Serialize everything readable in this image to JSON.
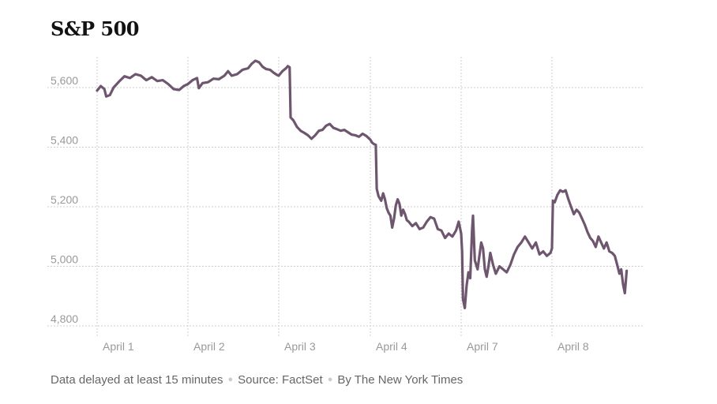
{
  "chart_data": {
    "type": "line",
    "title": "S&P 500",
    "xlabel": "",
    "ylabel": "",
    "ylim": [
      4780,
      5720
    ],
    "yticks": [
      4800,
      5000,
      5200,
      5400,
      5600
    ],
    "ytick_labels": [
      "4,800",
      "5,000",
      "5,200",
      "5,400",
      "5,600"
    ],
    "x_categories": [
      "April 1",
      "April 2",
      "April 3",
      "April 4",
      "April 7",
      "April 8"
    ],
    "grid": true,
    "line_color": "#6e566f",
    "series": [
      {
        "name": "",
        "values": [
          [
            0.0,
            5590
          ],
          [
            0.04,
            5605
          ],
          [
            0.08,
            5595
          ],
          [
            0.1,
            5570
          ],
          [
            0.14,
            5575
          ],
          [
            0.18,
            5600
          ],
          [
            0.24,
            5620
          ],
          [
            0.3,
            5638
          ],
          [
            0.36,
            5632
          ],
          [
            0.42,
            5645
          ],
          [
            0.48,
            5640
          ],
          [
            0.54,
            5625
          ],
          [
            0.6,
            5635
          ],
          [
            0.66,
            5622
          ],
          [
            0.72,
            5625
          ],
          [
            0.78,
            5612
          ],
          [
            0.84,
            5595
          ],
          [
            0.9,
            5592
          ],
          [
            0.95,
            5605
          ],
          [
            1.0,
            5612
          ],
          [
            1.05,
            5625
          ],
          [
            1.1,
            5632
          ],
          [
            1.12,
            5598
          ],
          [
            1.16,
            5615
          ],
          [
            1.22,
            5618
          ],
          [
            1.28,
            5630
          ],
          [
            1.34,
            5628
          ],
          [
            1.4,
            5640
          ],
          [
            1.44,
            5655
          ],
          [
            1.48,
            5640
          ],
          [
            1.54,
            5645
          ],
          [
            1.6,
            5660
          ],
          [
            1.66,
            5665
          ],
          [
            1.7,
            5680
          ],
          [
            1.74,
            5690
          ],
          [
            1.78,
            5685
          ],
          [
            1.82,
            5670
          ],
          [
            1.86,
            5662
          ],
          [
            1.9,
            5660
          ],
          [
            1.94,
            5650
          ],
          [
            1.98,
            5642
          ],
          [
            2.0,
            5640
          ],
          [
            2.04,
            5655
          ],
          [
            2.08,
            5665
          ],
          [
            2.1,
            5672
          ],
          [
            2.12,
            5668
          ],
          [
            2.13,
            5500
          ],
          [
            2.16,
            5490
          ],
          [
            2.2,
            5468
          ],
          [
            2.24,
            5455
          ],
          [
            2.28,
            5448
          ],
          [
            2.32,
            5440
          ],
          [
            2.36,
            5428
          ],
          [
            2.4,
            5440
          ],
          [
            2.44,
            5455
          ],
          [
            2.48,
            5458
          ],
          [
            2.52,
            5472
          ],
          [
            2.56,
            5478
          ],
          [
            2.6,
            5465
          ],
          [
            2.64,
            5460
          ],
          [
            2.68,
            5455
          ],
          [
            2.72,
            5458
          ],
          [
            2.76,
            5450
          ],
          [
            2.8,
            5442
          ],
          [
            2.84,
            5440
          ],
          [
            2.88,
            5435
          ],
          [
            2.92,
            5445
          ],
          [
            2.96,
            5438
          ],
          [
            3.0,
            5425
          ],
          [
            3.02,
            5415
          ],
          [
            3.04,
            5410
          ],
          [
            3.06,
            5408
          ],
          [
            3.07,
            5260
          ],
          [
            3.09,
            5235
          ],
          [
            3.12,
            5220
          ],
          [
            3.14,
            5245
          ],
          [
            3.16,
            5225
          ],
          [
            3.18,
            5195
          ],
          [
            3.2,
            5180
          ],
          [
            3.22,
            5170
          ],
          [
            3.24,
            5130
          ],
          [
            3.26,
            5160
          ],
          [
            3.28,
            5205
          ],
          [
            3.3,
            5225
          ],
          [
            3.32,
            5210
          ],
          [
            3.34,
            5170
          ],
          [
            3.36,
            5190
          ],
          [
            3.38,
            5175
          ],
          [
            3.4,
            5155
          ],
          [
            3.42,
            5150
          ],
          [
            3.46,
            5135
          ],
          [
            3.5,
            5145
          ],
          [
            3.54,
            5125
          ],
          [
            3.58,
            5130
          ],
          [
            3.62,
            5150
          ],
          [
            3.66,
            5165
          ],
          [
            3.7,
            5160
          ],
          [
            3.74,
            5125
          ],
          [
            3.78,
            5120
          ],
          [
            3.82,
            5095
          ],
          [
            3.86,
            5110
          ],
          [
            3.9,
            5100
          ],
          [
            3.94,
            5120
          ],
          [
            3.97,
            5150
          ],
          [
            4.0,
            5110
          ],
          [
            4.01,
            5050
          ],
          [
            4.02,
            4890
          ],
          [
            4.04,
            4860
          ],
          [
            4.06,
            4935
          ],
          [
            4.08,
            4980
          ],
          [
            4.1,
            4960
          ],
          [
            4.12,
            5120
          ],
          [
            4.13,
            5170
          ],
          [
            4.15,
            5020
          ],
          [
            4.18,
            4990
          ],
          [
            4.22,
            5080
          ],
          [
            4.24,
            5060
          ],
          [
            4.26,
            4990
          ],
          [
            4.28,
            4965
          ],
          [
            4.3,
            5000
          ],
          [
            4.32,
            5045
          ],
          [
            4.35,
            5005
          ],
          [
            4.38,
            4975
          ],
          [
            4.42,
            5000
          ],
          [
            4.46,
            4990
          ],
          [
            4.5,
            4980
          ],
          [
            4.54,
            5005
          ],
          [
            4.58,
            5040
          ],
          [
            4.62,
            5065
          ],
          [
            4.66,
            5080
          ],
          [
            4.7,
            5100
          ],
          [
            4.74,
            5080
          ],
          [
            4.78,
            5060
          ],
          [
            4.82,
            5080
          ],
          [
            4.86,
            5040
          ],
          [
            4.9,
            5050
          ],
          [
            4.94,
            5035
          ],
          [
            4.98,
            5045
          ],
          [
            5.0,
            5060
          ],
          [
            5.01,
            5220
          ],
          [
            5.03,
            5215
          ],
          [
            5.06,
            5240
          ],
          [
            5.09,
            5255
          ],
          [
            5.12,
            5250
          ],
          [
            5.15,
            5255
          ],
          [
            5.18,
            5225
          ],
          [
            5.21,
            5200
          ],
          [
            5.24,
            5175
          ],
          [
            5.27,
            5190
          ],
          [
            5.3,
            5180
          ],
          [
            5.33,
            5160
          ],
          [
            5.36,
            5140
          ],
          [
            5.39,
            5115
          ],
          [
            5.42,
            5095
          ],
          [
            5.45,
            5085
          ],
          [
            5.48,
            5065
          ],
          [
            5.51,
            5100
          ],
          [
            5.54,
            5080
          ],
          [
            5.57,
            5060
          ],
          [
            5.6,
            5080
          ],
          [
            5.63,
            5050
          ],
          [
            5.66,
            5045
          ],
          [
            5.69,
            5035
          ],
          [
            5.72,
            5000
          ],
          [
            5.74,
            4975
          ],
          [
            5.76,
            4990
          ],
          [
            5.78,
            4940
          ],
          [
            5.8,
            4910
          ],
          [
            5.82,
            4985
          ]
        ]
      }
    ]
  },
  "footer": {
    "delay_note": "Data delayed at least 15 minutes",
    "source": "Source: FactSet",
    "credit": "By The New York Times"
  }
}
